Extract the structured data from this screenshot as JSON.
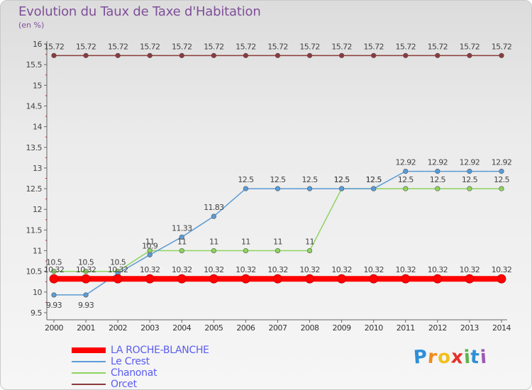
{
  "header": {
    "title": "Evolution du Taux de Taxe d'Habitation",
    "unit": "(en %)"
  },
  "brand": {
    "letters": [
      "P",
      "r",
      "o",
      "x",
      "i",
      "t",
      "i"
    ],
    "colors": [
      "#2e8fd8",
      "#f08a1c",
      "#f3c01a",
      "#e4322b",
      "#62b34b",
      "#2e8fd8",
      "#9c59b6"
    ]
  },
  "chart_data": {
    "type": "line",
    "title": "Evolution du Taux de Taxe d'Habitation",
    "ylabel": "(en %)",
    "xlabel": "",
    "x": [
      "2000",
      "2001",
      "2002",
      "2003",
      "2004",
      "2005",
      "2006",
      "2007",
      "2008",
      "2009",
      "2010",
      "2011",
      "2012",
      "2013",
      "2014"
    ],
    "ylim": [
      9.5,
      16
    ],
    "yticks": [
      "9.5",
      "10",
      "10.5",
      "11",
      "11.5",
      "12",
      "12.5",
      "13",
      "13.5",
      "14",
      "14.5",
      "15",
      "15.5",
      "16"
    ],
    "grid": false,
    "legend_position": "bottom-left",
    "series": [
      {
        "name": "LA ROCHE-BLANCHE",
        "color": "#ff0000",
        "values": [
          10.32,
          10.32,
          10.32,
          10.32,
          10.32,
          10.32,
          10.32,
          10.32,
          10.32,
          10.32,
          10.32,
          10.32,
          10.32,
          10.32,
          10.32
        ],
        "labels": [
          "10.32",
          "10.32",
          "10.32",
          "10.32",
          "10.32",
          "10.32",
          "10.32",
          "10.32",
          "10.32",
          "10.32",
          "10.32",
          "10.32",
          "10.32",
          "10.32",
          "10.32"
        ]
      },
      {
        "name": "Le Crest",
        "color": "#5b9bd5",
        "values": [
          9.93,
          9.93,
          10.45,
          10.9,
          11.33,
          11.83,
          12.5,
          12.5,
          12.5,
          12.5,
          12.5,
          12.92,
          12.92,
          12.92,
          12.92
        ],
        "labels": [
          "9.93",
          "9.93",
          "",
          "10.9",
          "11.33",
          "11.83",
          "12.5",
          "12.5",
          "12.5",
          "12.5",
          "12.5",
          "12.92",
          "12.92",
          "12.92",
          "12.92"
        ]
      },
      {
        "name": "Chanonat",
        "color": "#8dd35f",
        "values": [
          10.5,
          10.5,
          10.5,
          11,
          11,
          11,
          11,
          11,
          11,
          12.5,
          12.5,
          12.5,
          12.5,
          12.5,
          12.5
        ],
        "labels": [
          "10.5",
          "10.5",
          "10.5",
          "11",
          "11",
          "11",
          "11",
          "11",
          "11",
          "12.5",
          "12.5",
          "12.5",
          "12.5",
          "12.5",
          "12.5"
        ]
      },
      {
        "name": "Orcet",
        "color": "#8b3a3a",
        "values": [
          15.72,
          15.72,
          15.72,
          15.72,
          15.72,
          15.72,
          15.72,
          15.72,
          15.72,
          15.72,
          15.72,
          15.72,
          15.72,
          15.72,
          15.72
        ],
        "labels": [
          "15.72",
          "15.72",
          "15.72",
          "15.72",
          "15.72",
          "15.72",
          "15.72",
          "15.72",
          "15.72",
          "15.72",
          "15.72",
          "15.72",
          "15.72",
          "15.72",
          "15.72"
        ]
      }
    ]
  }
}
